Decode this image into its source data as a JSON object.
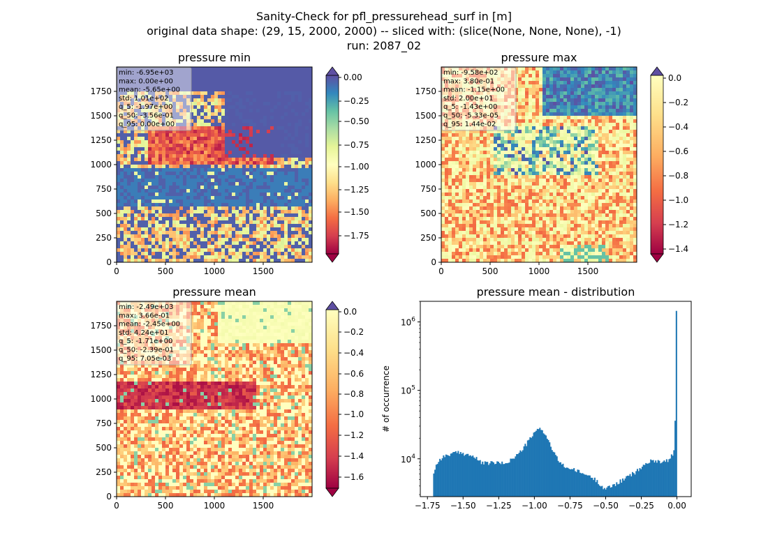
{
  "figure": {
    "suptitle": [
      "Sanity-Check for pfl_pressurehead_surf in [m]",
      "original data shape: (29, 15, 2000, 2000) -- sliced with: (slice(None, None, None), -1)",
      "run: 2087_02"
    ]
  },
  "chart_data": [
    {
      "type": "heatmap",
      "title": "pressure min",
      "xlim": [
        0,
        2000
      ],
      "ylim": [
        0,
        2000
      ],
      "xticks": [
        0,
        500,
        1000,
        1500
      ],
      "yticks": [
        0,
        250,
        500,
        750,
        1000,
        1250,
        1500,
        1750
      ],
      "colormap": "Spectral",
      "colorbar": {
        "range": [
          -1.9,
          0.0
        ],
        "ticks": [
          "0.00",
          "−0.25",
          "−0.50",
          "−0.75",
          "−1.00",
          "−1.25",
          "−1.50",
          "−1.75"
        ],
        "extend": "both"
      },
      "stats": [
        "min: -6.95e+03",
        "max: 0.00e+00",
        "mean: -5.65e+00",
        "std: 1.01e+02",
        "q_5: -1.97e+00",
        "q_50: -3.56e-01",
        "q_95: 0.00e+00"
      ]
    },
    {
      "type": "heatmap",
      "title": "pressure max",
      "xlim": [
        0,
        2000
      ],
      "ylim": [
        0,
        2000
      ],
      "xticks": [
        0,
        500,
        1000,
        1500
      ],
      "yticks": [
        0,
        250,
        500,
        750,
        1000,
        1250,
        1500,
        1750
      ],
      "colormap": "Spectral",
      "colorbar": {
        "range": [
          -1.5,
          0.0
        ],
        "ticks": [
          "0.0",
          "−0.2",
          "−0.4",
          "−0.6",
          "−0.8",
          "−1.0",
          "−1.2",
          "−1.4"
        ],
        "extend": "both"
      },
      "stats": [
        "min: -9.58e+02",
        "max: 3.80e-01",
        "mean: -1.15e+00",
        "std: 2.00e+01",
        "q_5: -1.43e+00",
        "q_50: -5.33e-05",
        "q_95: 1.44e-02"
      ]
    },
    {
      "type": "heatmap",
      "title": "pressure mean",
      "xlim": [
        0,
        2000
      ],
      "ylim": [
        0,
        2000
      ],
      "xticks": [
        0,
        500,
        1000,
        1500
      ],
      "yticks": [
        0,
        250,
        500,
        750,
        1000,
        1250,
        1500,
        1750
      ],
      "colormap": "Spectral",
      "colorbar": {
        "range": [
          -1.7,
          0.0
        ],
        "ticks": [
          "0.0",
          "−0.2",
          "−0.4",
          "−0.6",
          "−0.8",
          "−1.0",
          "−1.2",
          "−1.4",
          "−1.6"
        ],
        "extend": "both"
      },
      "stats": [
        "min: -2.49e+03",
        "max: 3.66e-01",
        "mean: -2.45e+00",
        "std: 4.24e+01",
        "q_5: -1.71e+00",
        "q_50: -2.39e-01",
        "q_95: 7.05e-03"
      ]
    },
    {
      "type": "bar",
      "subtype": "histogram",
      "title": "pressure mean - distribution",
      "xlabel": "",
      "ylabel": "# of occurrence",
      "yscale": "log",
      "xlim": [
        -1.8,
        0.1
      ],
      "ylim": [
        2800,
        2000000
      ],
      "xticks": [
        "−1.75",
        "−1.50",
        "−1.25",
        "−1.00",
        "−0.75",
        "−0.50",
        "−0.25",
        "0.00"
      ],
      "yticks": [
        {
          "value": 10000,
          "label": "10^4"
        },
        {
          "value": 100000,
          "label": "10^5"
        },
        {
          "value": 1000000,
          "label": "10^6"
        }
      ],
      "color": "#1f77b4",
      "curve": {
        "x": [
          -1.71,
          -1.69,
          -1.66,
          -1.62,
          -1.58,
          -1.54,
          -1.5,
          -1.46,
          -1.42,
          -1.38,
          -1.34,
          -1.3,
          -1.26,
          -1.22,
          -1.18,
          -1.14,
          -1.1,
          -1.06,
          -1.02,
          -0.99,
          -0.96,
          -0.93,
          -0.9,
          -0.87,
          -0.84,
          -0.8,
          -0.75,
          -0.7,
          -0.65,
          -0.6,
          -0.56,
          -0.53,
          -0.51,
          -0.5,
          -0.47,
          -0.43,
          -0.38,
          -0.33,
          -0.28,
          -0.24,
          -0.2,
          -0.15,
          -0.1,
          -0.05,
          -0.02,
          -0.01,
          -0.005,
          0.0
        ],
        "y": [
          5900,
          8000,
          10000,
          11200,
          11800,
          12300,
          12000,
          11500,
          10500,
          9000,
          8500,
          8800,
          8700,
          8500,
          9200,
          10500,
          12500,
          16000,
          21000,
          25000,
          28500,
          24000,
          18000,
          13000,
          10000,
          8000,
          7200,
          6600,
          6000,
          5400,
          4700,
          4100,
          3700,
          3600,
          3900,
          4300,
          4900,
          5700,
          6600,
          7800,
          9000,
          9500,
          9000,
          9800,
          13000,
          20000,
          36000,
          1450000
        ]
      }
    }
  ]
}
